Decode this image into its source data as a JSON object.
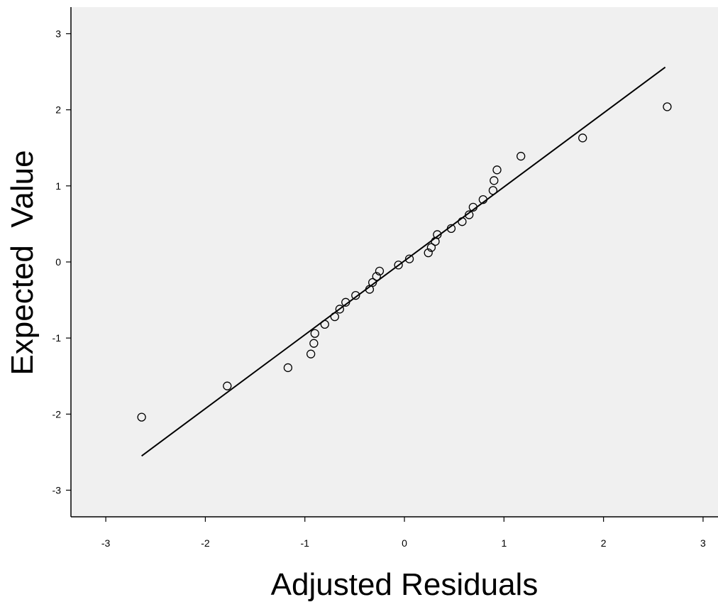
{
  "chart_data": {
    "type": "scatter",
    "title": "",
    "xlabel": "Adjusted Residuals",
    "ylabel": "Expected  Value",
    "xlim": [
      -3.35,
      3.15
    ],
    "ylim": [
      -3.35,
      3.35
    ],
    "x_ticks": [
      -3,
      -2,
      -1,
      0,
      1,
      2,
      3
    ],
    "y_ticks": [
      -3,
      -2,
      -1,
      0,
      1,
      2,
      3
    ],
    "x_tick_labels": [
      "-3",
      "-2",
      "-1",
      "0",
      "1",
      "2",
      "3"
    ],
    "y_tick_labels": [
      "-3",
      "-2",
      "-1",
      "0",
      "1",
      "2",
      "3"
    ],
    "grid": false,
    "background": "#f0f0f0",
    "marker": "open-circle",
    "points": [
      {
        "x": -2.64,
        "y": -2.04
      },
      {
        "x": -1.78,
        "y": -1.63
      },
      {
        "x": -1.17,
        "y": -1.39
      },
      {
        "x": -0.94,
        "y": -1.21
      },
      {
        "x": -0.91,
        "y": -1.07
      },
      {
        "x": -0.9,
        "y": -0.94
      },
      {
        "x": -0.8,
        "y": -0.82
      },
      {
        "x": -0.7,
        "y": -0.72
      },
      {
        "x": -0.65,
        "y": -0.62
      },
      {
        "x": -0.59,
        "y": -0.53
      },
      {
        "x": -0.49,
        "y": -0.44
      },
      {
        "x": -0.35,
        "y": -0.36
      },
      {
        "x": -0.32,
        "y": -0.27
      },
      {
        "x": -0.28,
        "y": -0.19
      },
      {
        "x": -0.25,
        "y": -0.12
      },
      {
        "x": -0.06,
        "y": -0.04
      },
      {
        "x": 0.05,
        "y": 0.04
      },
      {
        "x": 0.24,
        "y": 0.12
      },
      {
        "x": 0.27,
        "y": 0.19
      },
      {
        "x": 0.31,
        "y": 0.27
      },
      {
        "x": 0.33,
        "y": 0.36
      },
      {
        "x": 0.47,
        "y": 0.44
      },
      {
        "x": 0.58,
        "y": 0.53
      },
      {
        "x": 0.65,
        "y": 0.62
      },
      {
        "x": 0.69,
        "y": 0.72
      },
      {
        "x": 0.79,
        "y": 0.82
      },
      {
        "x": 0.89,
        "y": 0.94
      },
      {
        "x": 0.9,
        "y": 1.07
      },
      {
        "x": 0.93,
        "y": 1.21
      },
      {
        "x": 1.17,
        "y": 1.39
      },
      {
        "x": 1.79,
        "y": 1.63
      },
      {
        "x": 2.64,
        "y": 2.04
      }
    ],
    "reference_line": {
      "x1": -2.64,
      "y1": -2.55,
      "x2": 2.62,
      "y2": 2.56
    }
  }
}
